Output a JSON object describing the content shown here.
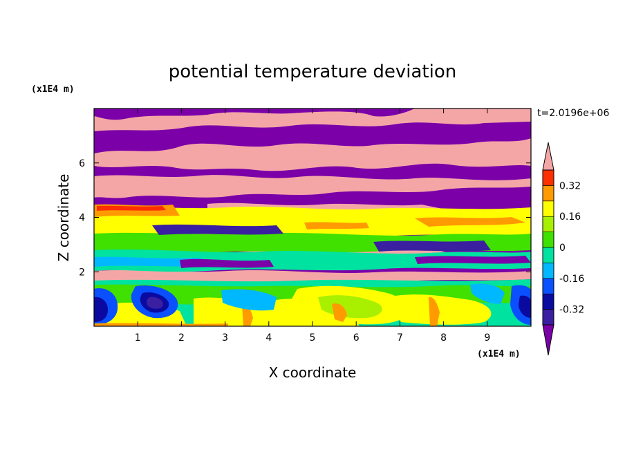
{
  "chart_data": {
    "type": "heatmap",
    "title": "potential temperature deviation",
    "xlabel": "X coordinate",
    "ylabel": "Z coordinate",
    "x_unit": "(x1E4 m)",
    "z_unit": "(x1E4 m)",
    "time_label": "t=2.0196e+06",
    "xlim": [
      0,
      10
    ],
    "ylim": [
      0,
      8
    ],
    "x_ticks": [
      "1",
      "2",
      "3",
      "4",
      "5",
      "6",
      "7",
      "8",
      "9"
    ],
    "y_ticks": [
      "2",
      "4",
      "6"
    ],
    "colorbar": {
      "levels": [
        -0.4,
        -0.32,
        -0.24,
        -0.16,
        -0.08,
        0,
        0.08,
        0.16,
        0.24,
        0.32,
        0.4
      ],
      "colors": [
        "#7b00a8",
        "#3a1fa0",
        "#0a0aa0",
        "#0a50ff",
        "#00b8ff",
        "#00e2a0",
        "#40e000",
        "#a8f000",
        "#ffff00",
        "#ff9a00",
        "#ff3000",
        "#f4a6a6"
      ],
      "labels": [
        "0.32",
        "0.16",
        "0",
        "-0.16",
        "-0.32"
      ],
      "label_values": [
        0.32,
        0.16,
        0,
        -0.16,
        -0.32
      ],
      "extend": "both"
    },
    "bands": [
      {
        "z": [
          0.0,
          1.2
        ],
        "dominant": [
          "cyan",
          "green",
          "yellow"
        ],
        "features": "large blue vortices near x=0.2, 1.5, 9.8; yellow-orange plumes"
      },
      {
        "z": [
          1.2,
          2.0
        ],
        "dominant": [
          "green",
          "cyan",
          "yellow"
        ]
      },
      {
        "z": [
          1.8,
          2.2
        ],
        "dominant": [
          "pink",
          "purple"
        ]
      },
      {
        "z": [
          2.0,
          3.6
        ],
        "dominant": [
          "green",
          "yellow",
          "purple",
          "pink"
        ]
      },
      {
        "z": [
          3.6,
          4.5
        ],
        "dominant": [
          "yellow",
          "orange",
          "purple"
        ]
      },
      {
        "z": [
          4.5,
          5.2
        ],
        "dominant": [
          "pink",
          "purple"
        ]
      },
      {
        "z": [
          5.2,
          6.0
        ],
        "dominant": [
          "purple",
          "pink"
        ]
      },
      {
        "z": [
          6.0,
          6.7
        ],
        "dominant": [
          "pink",
          "purple"
        ]
      },
      {
        "z": [
          6.7,
          7.3
        ],
        "dominant": [
          "purple"
        ]
      },
      {
        "z": [
          7.3,
          8.0
        ],
        "dominant": [
          "pink",
          "purple"
        ]
      }
    ]
  }
}
